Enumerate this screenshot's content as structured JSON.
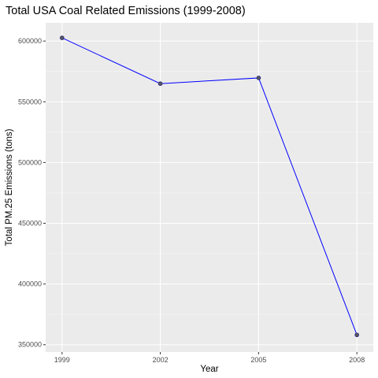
{
  "chart_data": {
    "type": "line",
    "title": "Total USA Coal Related Emissions (1999-2008)",
    "xlabel": "Year",
    "ylabel": "Total PM.25 Emissions (tons)",
    "x": [
      1999,
      2002,
      2005,
      2008
    ],
    "x_tick_labels": [
      "1999",
      "2002",
      "2005",
      "2008"
    ],
    "y": [
      602624,
      564940,
      569654,
      358084
    ],
    "ylim": [
      344000,
      615000
    ],
    "y_ticks": [
      350000,
      400000,
      450000,
      500000,
      550000,
      600000
    ],
    "y_tick_labels": [
      "350000",
      "400000",
      "450000",
      "500000",
      "550000",
      "600000"
    ],
    "grid": true,
    "legend": "none",
    "colors": {
      "line": "#0000ff",
      "point_fill": "#595959",
      "point_stroke": "#262680",
      "panel_background": "#ebebeb",
      "grid_major": "#ffffff",
      "grid_minor": "#f5f5f5"
    }
  }
}
